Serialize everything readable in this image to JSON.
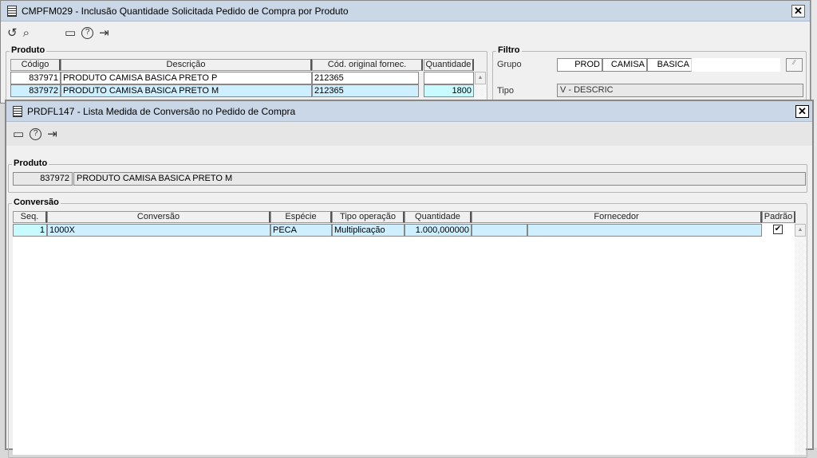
{
  "outer": {
    "title": "CMPFM029 - Inclusão Quantidade Solicitada  Pedido de Compra por Produto",
    "produto_label": "Produto",
    "columns": [
      "Código",
      "Descrição",
      "Cód. original fornec.",
      "Quantidade"
    ],
    "rows": [
      {
        "codigo": "837971",
        "descricao": "PRODUTO CAMISA BASICA PRETO P",
        "cod_forn": "212365",
        "quantidade": ""
      },
      {
        "codigo": "837972",
        "descricao": "PRODUTO CAMISA BASICA PRETO M",
        "cod_forn": "212365",
        "quantidade": "1800"
      }
    ],
    "filtro": {
      "label": "Filtro",
      "grupo_label": "Grupo",
      "grupo_values": [
        "PROD",
        "CAMISA",
        "BASICA"
      ],
      "tipo_label": "Tipo",
      "tipo_value": "V - DESCRIC"
    }
  },
  "inner": {
    "title": "PRDFL147 - Lista Medida de Conversão no Pedido de Compra",
    "produto_label": "Produto",
    "produto_codigo": "837972",
    "produto_descricao": "PRODUTO CAMISA BASICA PRETO M",
    "conversao_label": "Conversão",
    "columns": [
      "Seq.",
      "Conversão",
      "Espécie",
      "Tipo operação",
      "Quantidade",
      "Fornecedor",
      "Padrão"
    ],
    "rows": [
      {
        "seq": "1",
        "conversao": "1000X",
        "especie": "PECA",
        "tipo": "Multiplicação",
        "quantidade": "1.000,000000",
        "fornecedor_cod": "",
        "fornecedor": "",
        "padrao": true
      }
    ]
  },
  "icons": {
    "close": "✕",
    "undo": "↺",
    "search": "⌕",
    "calendar": "▭",
    "help": "?",
    "exit": "⇥"
  }
}
